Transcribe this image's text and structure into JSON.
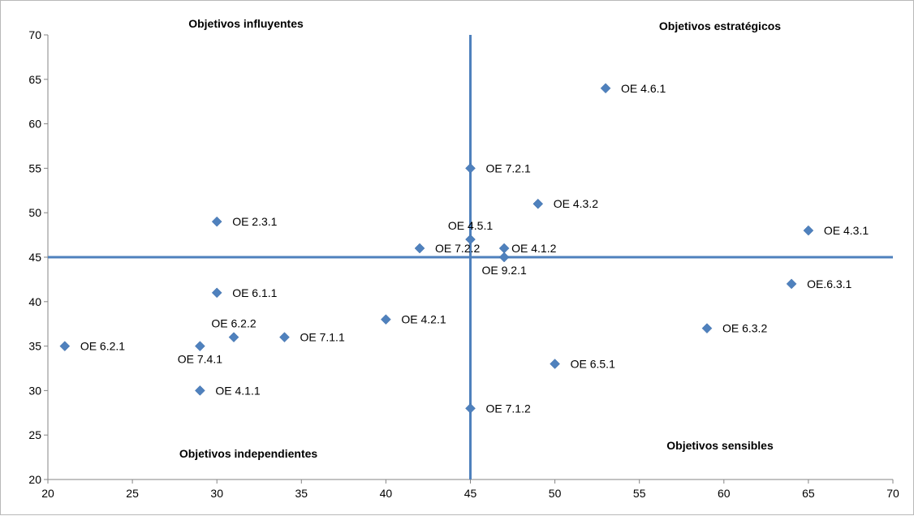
{
  "chart_data": {
    "type": "scatter",
    "title": "",
    "xlabel": "",
    "ylabel": "",
    "xlim": [
      20,
      70
    ],
    "ylim": [
      20,
      70
    ],
    "x_ticks": [
      20,
      25,
      30,
      35,
      40,
      45,
      50,
      55,
      60,
      65,
      70
    ],
    "y_ticks": [
      20,
      25,
      30,
      35,
      40,
      45,
      50,
      55,
      60,
      65,
      70
    ],
    "grid": false,
    "legend": "none",
    "marker": "diamond",
    "marker_color": "#4f81bd",
    "line_color": "#4f81bd",
    "reference_lines": {
      "x": 45,
      "y": 45
    },
    "quadrant_labels": {
      "top_left": "Objetivos influyentes",
      "top_right": "Objetivos estratégicos",
      "bottom_left": "Objetivos independientes",
      "bottom_right": "Objetivos sensibles"
    },
    "points": [
      {
        "label": "OE 4.6.1",
        "x": 53,
        "y": 64,
        "label_pos": "right"
      },
      {
        "label": "OE 7.2.1",
        "x": 45,
        "y": 55,
        "label_pos": "right"
      },
      {
        "label": "OE 4.3.2",
        "x": 49,
        "y": 51,
        "label_pos": "right"
      },
      {
        "label": "OE 2.3.1",
        "x": 30,
        "y": 49,
        "label_pos": "right"
      },
      {
        "label": "OE 4.3.1",
        "x": 65,
        "y": 48,
        "label_pos": "right"
      },
      {
        "label": "OE 4.5.1",
        "x": 45,
        "y": 47,
        "label_pos": "above"
      },
      {
        "label": "OE 7.2.2",
        "x": 42,
        "y": 46,
        "label_pos": "right"
      },
      {
        "label": "OE 4.1.2",
        "x": 47,
        "y": 46,
        "label_pos": "right-close"
      },
      {
        "label": "OE 9.2.1",
        "x": 47,
        "y": 45,
        "label_pos": "below"
      },
      {
        "label": "OE.6.3.1",
        "x": 64,
        "y": 42,
        "label_pos": "right"
      },
      {
        "label": "OE 6.1.1",
        "x": 30,
        "y": 41,
        "label_pos": "right"
      },
      {
        "label": "OE 4.2.1",
        "x": 40,
        "y": 38,
        "label_pos": "right"
      },
      {
        "label": "OE 6.3.2",
        "x": 59,
        "y": 37,
        "label_pos": "right"
      },
      {
        "label": "OE 6.2.2",
        "x": 31,
        "y": 36,
        "label_pos": "above"
      },
      {
        "label": "OE 7.1.1",
        "x": 34,
        "y": 36,
        "label_pos": "right"
      },
      {
        "label": "OE 6.2.1",
        "x": 21,
        "y": 35,
        "label_pos": "right"
      },
      {
        "label": "OE 7.4.1",
        "x": 29,
        "y": 35,
        "label_pos": "below"
      },
      {
        "label": "OE 6.5.1",
        "x": 50,
        "y": 33,
        "label_pos": "right"
      },
      {
        "label": "OE 4.1.1",
        "x": 29,
        "y": 30,
        "label_pos": "right"
      },
      {
        "label": "OE 7.1.2",
        "x": 45,
        "y": 28,
        "label_pos": "right"
      }
    ]
  }
}
